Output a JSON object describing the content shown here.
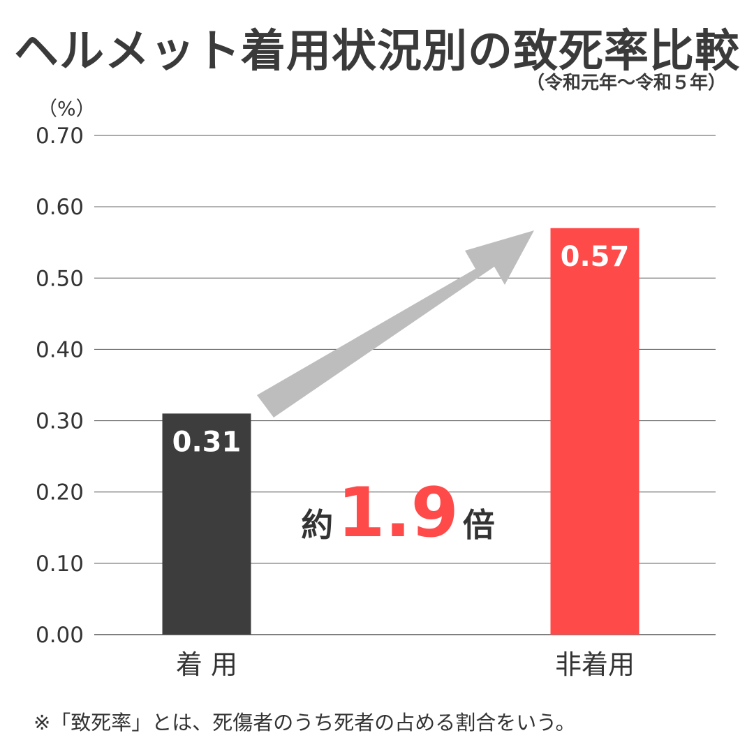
{
  "title": "ヘルメット着用状況別の致死率比較",
  "subtitle": "（令和元年〜令和５年）",
  "unit_label": "（%）",
  "footnote": "※「致死率」とは、死傷者のうち死者の占める割合をいう。",
  "comparison": {
    "prefix": "約",
    "value": "1.9",
    "suffix": "倍"
  },
  "colors": {
    "worn": "#3d3d3d",
    "not_worn": "#ff4a4a",
    "arrow": "#bdbdbd",
    "highlight": "#ff4a4a",
    "grid": "#555555"
  },
  "chart_data": {
    "type": "bar",
    "categories": [
      "着 用",
      "非着用"
    ],
    "values": [
      0.31,
      0.57
    ],
    "value_labels": [
      "0.31",
      "0.57"
    ],
    "ylim": [
      0,
      0.7
    ],
    "yticks": [
      "0.00",
      "0.10",
      "0.20",
      "0.30",
      "0.40",
      "0.50",
      "0.60",
      "0.70"
    ],
    "grid": true
  }
}
